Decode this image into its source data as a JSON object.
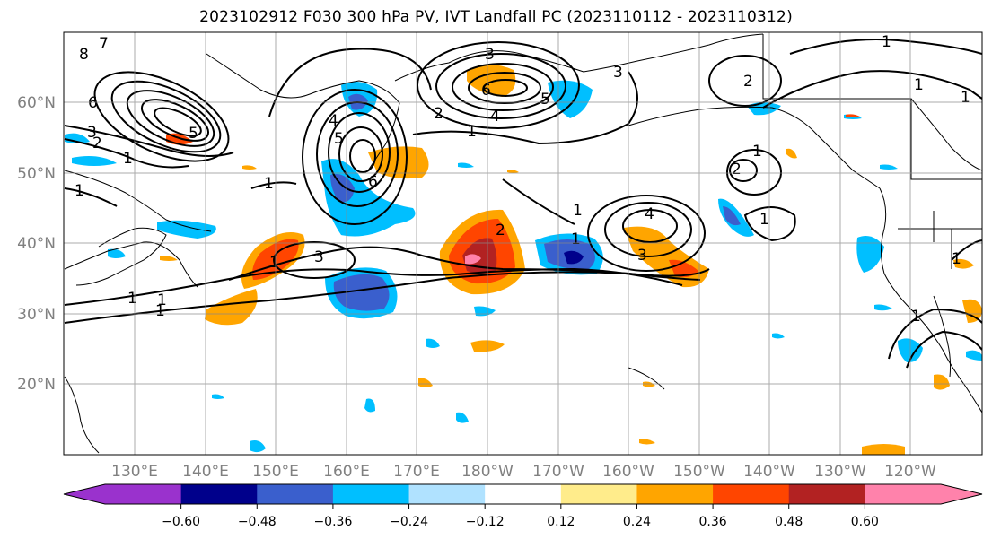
{
  "title": "2023102912 F030 300 hPa PV, IVT Landfall PC (2023110112 - 2023110312)",
  "lon_labels": [
    "130°E",
    "140°E",
    "150°E",
    "160°E",
    "170°E",
    "180°W",
    "170°W",
    "160°W",
    "150°W",
    "140°W",
    "130°W",
    "120°W"
  ],
  "lat_labels": [
    "60°N",
    "50°N",
    "40°N",
    "30°N",
    "20°N"
  ],
  "colorbar": {
    "colors": [
      "#9a32cd",
      "#00008b",
      "#3a5fcd",
      "#00bfff",
      "#b0e2ff",
      "#ffffff",
      "#ffec8b",
      "#ffa500",
      "#ff4500",
      "#b22222",
      "#ff82ab"
    ],
    "tick_labels": [
      "−0.60",
      "−0.48",
      "−0.36",
      "−0.24",
      "−0.12",
      "0.12",
      "0.24",
      "0.36",
      "0.48",
      "0.60"
    ]
  },
  "pv_contour_labels": [
    "8",
    "7",
    "6",
    "5",
    "3",
    "2",
    "1",
    "1",
    "1",
    "1",
    "6",
    "5",
    "4",
    "3",
    "1",
    "2",
    "3",
    "3",
    "4",
    "5",
    "6",
    "1",
    "1",
    "4",
    "3",
    "2",
    "1",
    "2",
    "2",
    "1",
    "1",
    "1",
    "1",
    "1",
    "1",
    "1",
    "1",
    "1"
  ]
}
